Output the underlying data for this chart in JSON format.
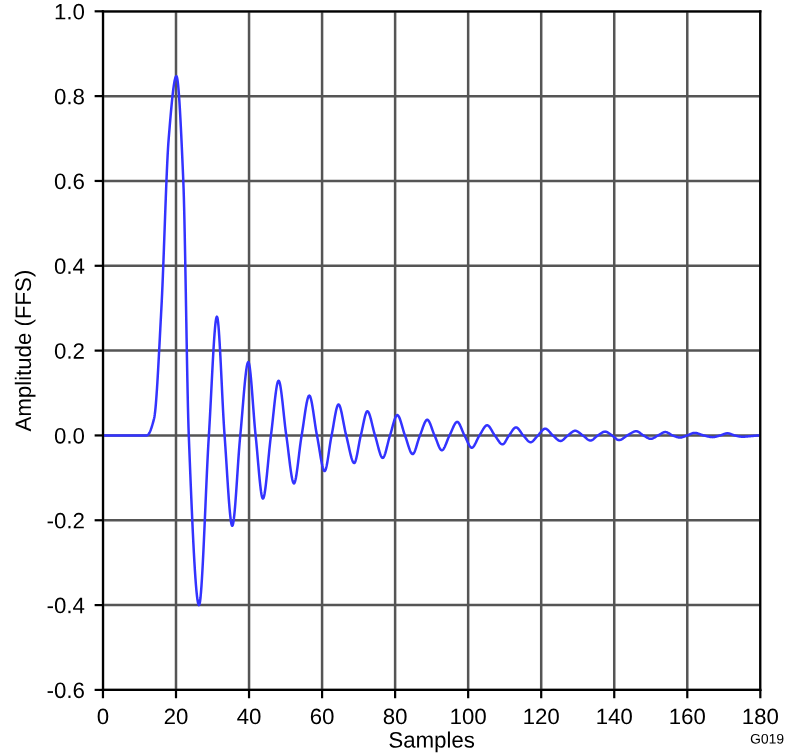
{
  "chart_data": {
    "type": "line",
    "xlabel": "Samples",
    "ylabel": "Amplitude (FFS)",
    "annotations": [
      "G019"
    ],
    "xlim": [
      0,
      180
    ],
    "ylim": [
      -0.6,
      1.0
    ],
    "xticks": [
      0,
      20,
      40,
      60,
      80,
      100,
      120,
      140,
      160,
      180
    ],
    "yticks": [
      {
        "value": -0.6,
        "label": "-0.6"
      },
      {
        "value": -0.4,
        "label": "-0.4"
      },
      {
        "value": -0.2,
        "label": "-0.2"
      },
      {
        "value": 0,
        "label": "0.0"
      },
      {
        "value": 0.2,
        "label": "0.2"
      },
      {
        "value": 0.4,
        "label": "0.4"
      },
      {
        "value": 0.6,
        "label": "0.6"
      },
      {
        "value": 0.8,
        "label": "0.8"
      },
      {
        "value": 1.0,
        "label": "1.0"
      }
    ],
    "grid": true,
    "marker": "none",
    "line_style": "solid",
    "series": [
      {
        "color": "#3333ff",
        "x": [
          0,
          12,
          14,
          16,
          18,
          20.1,
          22,
          23.5,
          26.3,
          29,
          31.2,
          33.3,
          35.4,
          37.6,
          39.8,
          41.8,
          43.8,
          46,
          48.1,
          50.2,
          52.3,
          54.4,
          56.5,
          58.6,
          60.7,
          62.6,
          64.5,
          66.6,
          68.8,
          70.6,
          72.4,
          74.5,
          76.6,
          78.6,
          80.6,
          82.7,
          84.8,
          86.8,
          88.8,
          90.8,
          92.8,
          94.9,
          97,
          99,
          101,
          103.1,
          105.2,
          107.3,
          109.4,
          111.2,
          113.1,
          115.1,
          117.1,
          119.1,
          121.1,
          123.2,
          125.3,
          127.3,
          129.3,
          131.4,
          133.5,
          135.5,
          137.5,
          139.4,
          141.3,
          143.6,
          146,
          148,
          150,
          152,
          154,
          156,
          158,
          160,
          162,
          164.5,
          167,
          169,
          171,
          173,
          175,
          180
        ],
        "values": [
          0,
          0,
          0.04,
          0.3,
          0.7,
          0.847,
          0.6,
          0,
          -0.4,
          0,
          0.28,
          0,
          -0.213,
          0,
          0.173,
          0,
          -0.149,
          0,
          0.129,
          0,
          -0.113,
          0,
          0.094,
          0,
          -0.084,
          0,
          0.073,
          0,
          -0.065,
          0,
          0.057,
          0,
          -0.053,
          0,
          0.048,
          0,
          -0.044,
          0,
          0.037,
          0,
          -0.035,
          0,
          0.032,
          0,
          -0.029,
          0,
          0.024,
          0,
          -0.021,
          0,
          0.019,
          0,
          -0.016,
          0,
          0.016,
          0,
          -0.013,
          0,
          0.011,
          0,
          -0.012,
          0,
          0.009,
          0,
          -0.011,
          0,
          0.01,
          0,
          -0.008,
          0,
          0.008,
          0,
          -0.005,
          0,
          0.006,
          0,
          -0.004,
          0,
          0.005,
          0,
          -0.003,
          0
        ]
      }
    ]
  }
}
